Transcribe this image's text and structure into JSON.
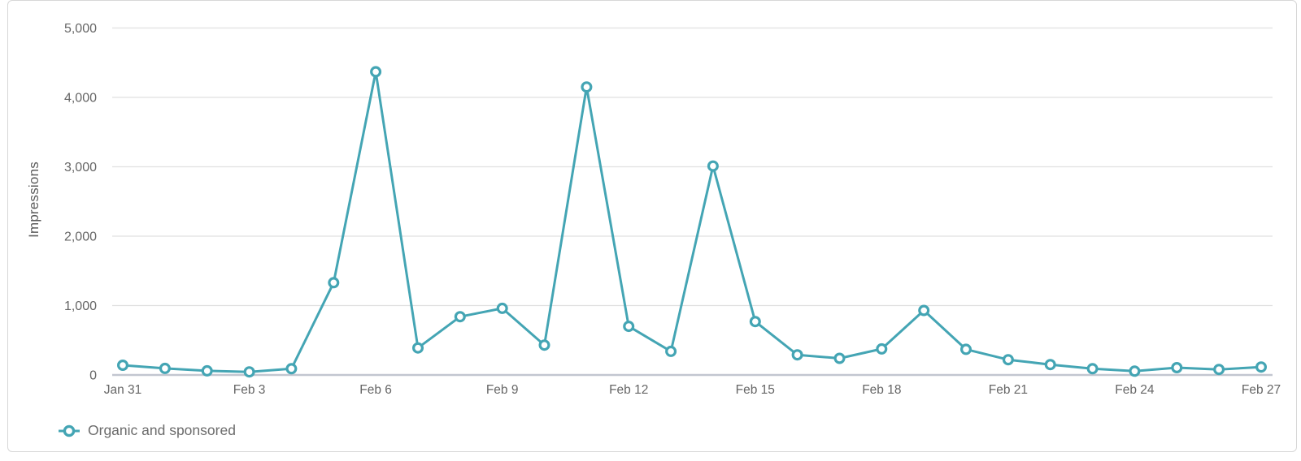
{
  "chart_data": {
    "type": "line",
    "title": "",
    "ylabel": "Impressions",
    "xlabel": "",
    "x": [
      "Jan 31",
      "Feb 1",
      "Feb 2",
      "Feb 3",
      "Feb 4",
      "Feb 5",
      "Feb 6",
      "Feb 7",
      "Feb 8",
      "Feb 9",
      "Feb 10",
      "Feb 11",
      "Feb 12",
      "Feb 13",
      "Feb 14",
      "Feb 15",
      "Feb 16",
      "Feb 17",
      "Feb 18",
      "Feb 19",
      "Feb 20",
      "Feb 21",
      "Feb 22",
      "Feb 23",
      "Feb 24",
      "Feb 25",
      "Feb 26",
      "Feb 27"
    ],
    "x_tick_labels": [
      "Jan 31",
      "Feb 3",
      "Feb 6",
      "Feb 9",
      "Feb 12",
      "Feb 15",
      "Feb 18",
      "Feb 21",
      "Feb 24",
      "Feb 27"
    ],
    "x_tick_every": 3,
    "series": [
      {
        "name": "Organic and sponsored",
        "color": "#44a5b4",
        "marker": "open-circle",
        "values": [
          140,
          95,
          60,
          45,
          90,
          1330,
          4370,
          390,
          840,
          960,
          430,
          4150,
          700,
          340,
          3010,
          770,
          290,
          240,
          375,
          930,
          370,
          220,
          150,
          90,
          55,
          105,
          80,
          115
        ]
      }
    ],
    "ylim": [
      0,
      5000
    ],
    "y_ticks": [
      0,
      1000,
      2000,
      3000,
      4000,
      5000
    ],
    "grid": "horizontal",
    "legend_position": "bottom-left"
  },
  "colors": {
    "accent": "#44a5b4",
    "marker_fill": "#ffffff",
    "grid_line": "#e0e0e0",
    "zero_axis_line": "#c2c6d0",
    "tick_label": "#666666",
    "axis_title": "#5c5c5c",
    "legend_text": "#6b6b6b",
    "card_border": "#d7d7d7"
  }
}
